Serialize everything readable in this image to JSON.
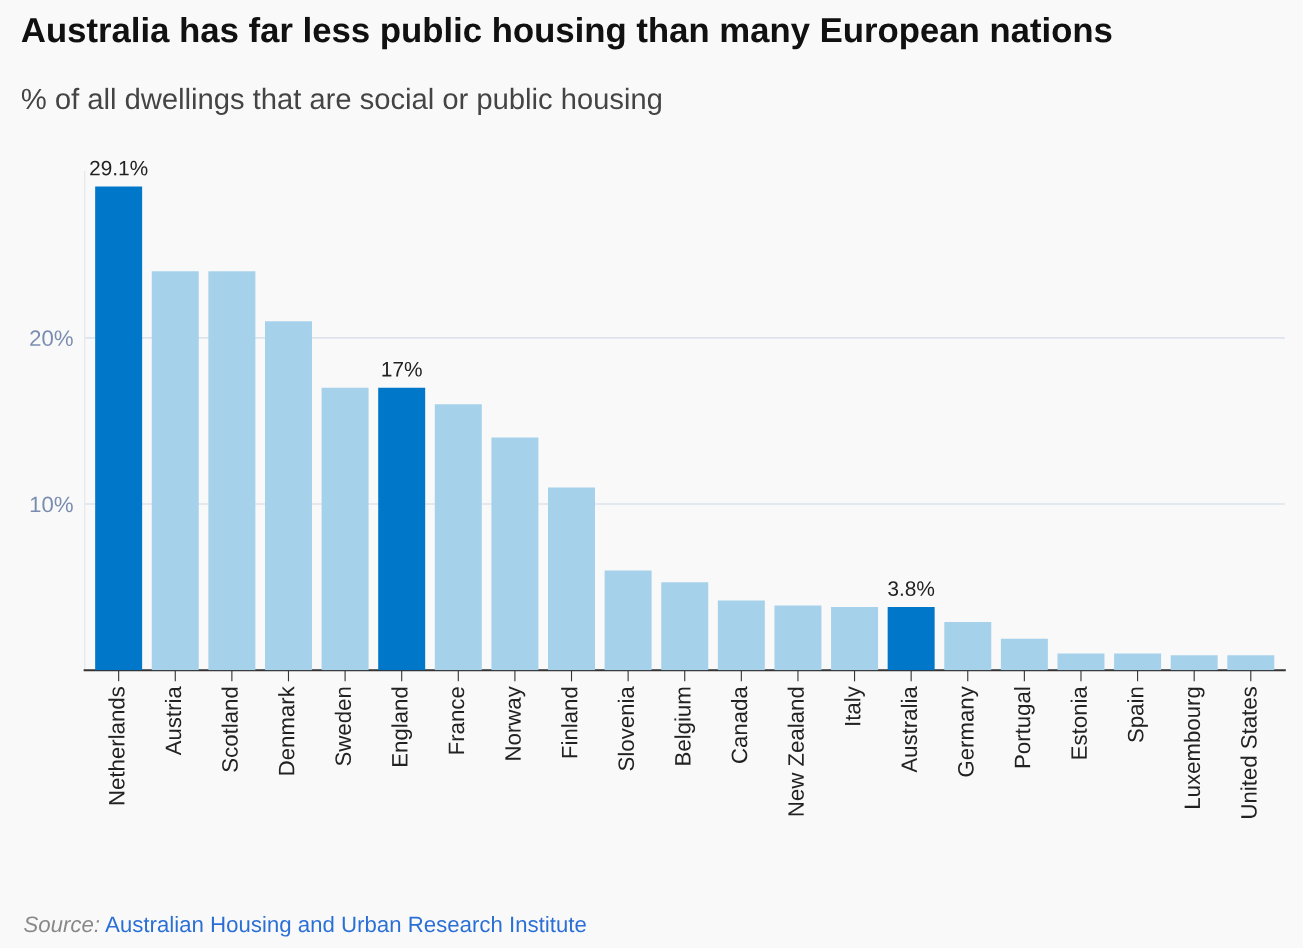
{
  "chart_data": {
    "type": "bar",
    "title": "Australia has far less public housing than many European nations",
    "subtitle": "% of all dwellings that are social or public housing",
    "categories": [
      "Netherlands",
      "Austria",
      "Scotland",
      "Denmark",
      "Sweden",
      "England",
      "France",
      "Norway",
      "Finland",
      "Slovenia",
      "Belgium",
      "Canada",
      "New Zealand",
      "Italy",
      "Australia",
      "Germany",
      "Portugal",
      "Estonia",
      "Spain",
      "Luxembourg",
      "United States"
    ],
    "values": [
      29.1,
      24,
      24,
      21,
      17,
      17,
      16,
      14,
      11,
      6,
      5.3,
      4.2,
      3.9,
      3.8,
      3.8,
      2.9,
      1.9,
      1,
      1,
      0.9,
      0.9
    ],
    "colors": [
      "#0077c8",
      "#a6d1eb",
      "#a6d1eb",
      "#a6d1eb",
      "#a6d1eb",
      "#0077c8",
      "#a6d1eb",
      "#a6d1eb",
      "#a6d1eb",
      "#a6d1eb",
      "#a6d1eb",
      "#a6d1eb",
      "#a6d1eb",
      "#a6d1eb",
      "#0077c8",
      "#a6d1eb",
      "#a6d1eb",
      "#a6d1eb",
      "#a6d1eb",
      "#a6d1eb",
      "#a6d1eb"
    ],
    "value_labels": [
      "29.1%",
      null,
      null,
      null,
      null,
      "17%",
      null,
      null,
      null,
      null,
      null,
      null,
      null,
      null,
      "3.8%",
      null,
      null,
      null,
      null,
      null,
      null
    ],
    "ylim": [
      0,
      30
    ],
    "yticks": [
      {
        "value": 10,
        "label": "10%"
      },
      {
        "value": 20,
        "label": "20%"
      }
    ],
    "grid": "y",
    "annotations": [
      "Source: Australian Housing and Urban Research Institute"
    ]
  }
}
